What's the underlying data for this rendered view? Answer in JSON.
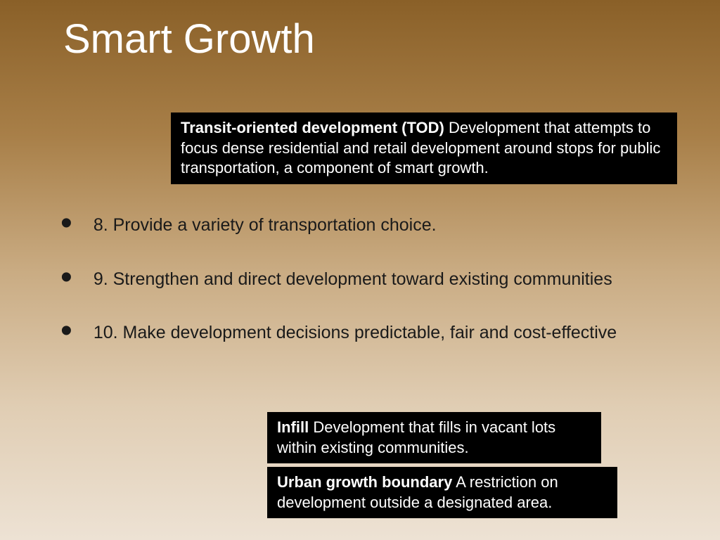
{
  "slide": {
    "title": "Smart Growth",
    "title_color": "#ffffff",
    "title_fontsize": 58,
    "background_gradient": {
      "stops": [
        "#8a6028",
        "#a87f48",
        "#c9ab82",
        "#e0cdb3",
        "#ede2d4"
      ]
    }
  },
  "definitions": {
    "tod": {
      "term": "Transit-oriented development (TOD)",
      "text": "  Development that attempts to focus dense residential and retail development around stops for public transportation, a component of smart growth.",
      "background_color": "#000000",
      "text_color": "#ffffff",
      "fontsize": 22
    },
    "infill": {
      "term": "Infill",
      "text": "  Development that fills in vacant lots within existing communities.",
      "background_color": "#000000",
      "text_color": "#ffffff",
      "fontsize": 22
    },
    "urban": {
      "term": "Urban growth boundary",
      "text": "  A restriction on development outside a designated area.",
      "background_color": "#000000",
      "text_color": "#ffffff",
      "fontsize": 22
    }
  },
  "bullets": {
    "items": [
      "8. Provide a variety of transportation choice.",
      "9. Strengthen and direct development toward existing communities",
      "10. Make development decisions predictable, fair and cost-effective"
    ],
    "text_color": "#1a1a1a",
    "fontsize": 25,
    "bullet_symbol": "•"
  }
}
